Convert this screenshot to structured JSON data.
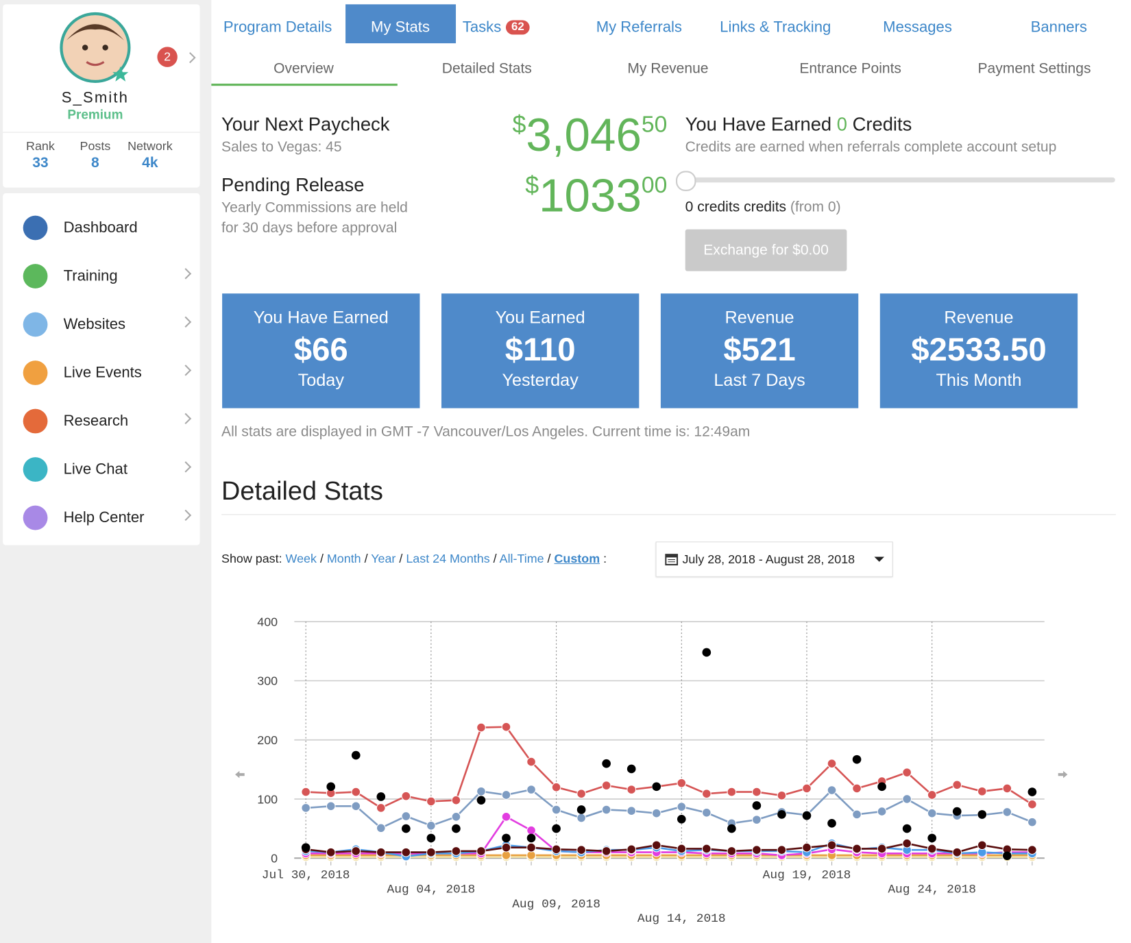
{
  "sidebar": {
    "profile": {
      "username": "S_Smith",
      "level": "Premium",
      "notifications": 2
    },
    "stats": [
      {
        "label": "Rank",
        "value": 33
      },
      {
        "label": "Posts",
        "value": 8
      },
      {
        "label": "Network",
        "value": "4k"
      }
    ],
    "menu": [
      "Dashboard",
      "Training",
      "Websites",
      "Live Events",
      "Research",
      "Live Chat",
      "Help Center"
    ]
  },
  "tabs": {
    "items": [
      "Program Details",
      "My Stats",
      "Tasks",
      "My Referrals",
      "Links & Tracking",
      "Messages",
      "Banners"
    ],
    "tasks_badge": 62
  },
  "subtabs": [
    "Overview",
    "Detailed Stats",
    "My Revenue",
    "Entrance Points",
    "Payment Settings"
  ],
  "paycheck": {
    "title": "Your Next Paycheck",
    "subtitle": "Sales to Vegas: 45",
    "currency": "$",
    "whole": "3,046",
    "cents": "50"
  },
  "pending": {
    "title": "Pending Release",
    "lines": [
      "Yearly Commissions are held",
      "for 30 days before approval"
    ],
    "currency": "$",
    "whole": "1033",
    "cents": "00"
  },
  "credits": {
    "title_start": "You Have Earned",
    "count": 0,
    "title_end": "Credits",
    "note": "Credits are earned when referrals complete account setup",
    "status": "0 credits credits",
    "from": "(from 0)",
    "button": "Exchange for $0.00"
  },
  "cards": [
    {
      "top": "You Have Earned",
      "amount": "$66",
      "bottom": "Today"
    },
    {
      "top": "You Earned",
      "amount": "$110",
      "bottom": "Yesterday"
    },
    {
      "top": "Revenue",
      "amount": "$521",
      "bottom": "Last 7 Days"
    },
    {
      "top": "Revenue",
      "amount": "$2533.50",
      "bottom": "This Month"
    }
  ],
  "timezone_note": "All stats are displayed in GMT -7 Vancouver/Los Angeles. Current time is: 12:49am",
  "section_title": "Detailed Stats",
  "filter": {
    "label": "Show past:",
    "links": [
      "Week",
      "Month",
      "Year",
      "Last 24 Months",
      "All-Time",
      "Custom"
    ],
    "separator": "/",
    "suffix": ":",
    "date_range": "July 28, 2018 - August 28, 2018"
  },
  "chart_data": {
    "type": "line",
    "ylim": [
      0,
      400
    ],
    "yticks": [
      0,
      100,
      200,
      300,
      400
    ],
    "grid": true,
    "categories": [
      "Jul 30, 2018",
      null,
      null,
      null,
      null,
      "Aug 04, 2018",
      null,
      null,
      null,
      null,
      "Aug 09, 2018",
      null,
      null,
      null,
      null,
      "Aug 14, 2018",
      null,
      null,
      null,
      null,
      "Aug 19, 2018",
      null,
      null,
      null,
      null,
      "Aug 24, 2018",
      null,
      null,
      null,
      null
    ],
    "series": [
      {
        "color": "#f3e3a8",
        "values": [
          2,
          2,
          2,
          2,
          2,
          2,
          2,
          2,
          2,
          2,
          2,
          2,
          2,
          2,
          2,
          2,
          2,
          2,
          2,
          2,
          2,
          2,
          2,
          2,
          2,
          2,
          2,
          2,
          2,
          2
        ]
      },
      {
        "color": "#e8a040",
        "values": [
          5,
          5,
          5,
          5,
          5,
          5,
          5,
          5,
          5,
          5,
          5,
          5,
          5,
          5,
          5,
          5,
          5,
          5,
          5,
          5,
          5,
          5,
          5,
          5,
          5,
          5,
          5,
          5,
          5,
          5
        ]
      },
      {
        "color": "#e23de0",
        "values": [
          8,
          8,
          8,
          8,
          8,
          8,
          8,
          8,
          70,
          47,
          12,
          10,
          10,
          10,
          10,
          10,
          8,
          8,
          8,
          5,
          8,
          15,
          10,
          8,
          8,
          8,
          8,
          8,
          10,
          10
        ]
      },
      {
        "color": "#4b9be8",
        "values": [
          12,
          10,
          15,
          10,
          3,
          8,
          8,
          12,
          22,
          18,
          12,
          10,
          14,
          14,
          18,
          12,
          14,
          12,
          12,
          12,
          10,
          25,
          15,
          18,
          14,
          14,
          8,
          10,
          8,
          8
        ]
      },
      {
        "color": "#5a0e0e",
        "values": [
          15,
          10,
          12,
          10,
          10,
          10,
          12,
          12,
          18,
          18,
          15,
          14,
          12,
          15,
          22,
          16,
          16,
          12,
          14,
          14,
          18,
          22,
          16,
          16,
          25,
          16,
          10,
          22,
          15,
          14
        ]
      },
      {
        "color": "#7e9cc2",
        "values": [
          85,
          88,
          88,
          51,
          71,
          55,
          70,
          113,
          107,
          116,
          82,
          68,
          82,
          80,
          76,
          87,
          77,
          59,
          65,
          78,
          73,
          115,
          74,
          79,
          100,
          76,
          72,
          73,
          78,
          61
        ]
      },
      {
        "color": "#d65555",
        "values": [
          112,
          110,
          112,
          85,
          105,
          96,
          98,
          221,
          222,
          163,
          120,
          109,
          123,
          116,
          121,
          127,
          109,
          112,
          112,
          106,
          118,
          160,
          118,
          130,
          145,
          107,
          124,
          113,
          118,
          91
        ]
      },
      {
        "color": "#000000",
        "markers_only": true,
        "values": [
          18,
          121,
          174,
          104,
          50,
          34,
          50,
          98,
          34,
          34,
          50,
          82,
          160,
          151,
          121,
          66,
          348,
          50,
          89,
          74,
          72,
          59,
          167,
          121,
          50,
          34,
          79,
          74,
          4,
          112
        ]
      }
    ]
  }
}
